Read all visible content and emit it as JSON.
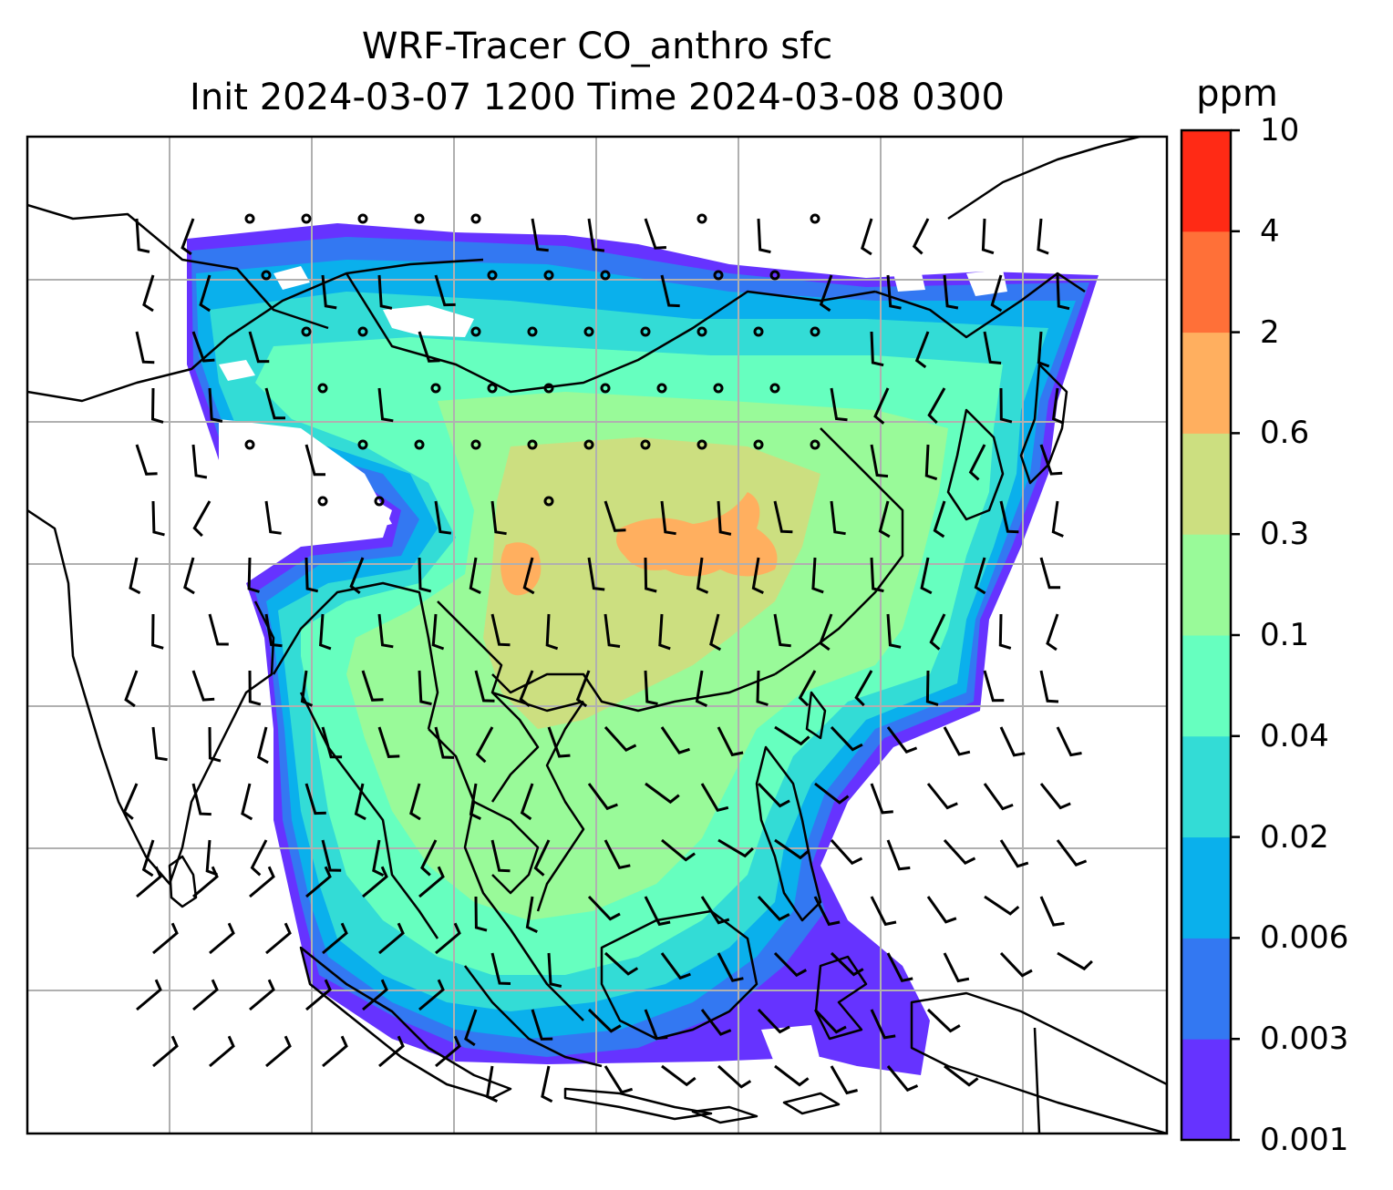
{
  "title": {
    "line1": "WRF-Tracer CO_anthro sfc",
    "line2": "Init 2024-03-07 1200 Time 2024-03-08 0300"
  },
  "colorbar": {
    "unit": "ppm",
    "levels": [
      "0.001",
      "0.003",
      "0.006",
      "0.02",
      "0.04",
      "0.1",
      "0.3",
      "0.6",
      "2",
      "4",
      "10"
    ],
    "colors": [
      "#6633ff",
      "#3378f2",
      "#0ab0ec",
      "#33dcd6",
      "#66ffbf",
      "#99fa99",
      "#ccdf80",
      "#ffaf5f",
      "#ff7038",
      "#ff2a15"
    ]
  },
  "map": {
    "gridlines": true,
    "features": [
      "coastlines",
      "country-borders",
      "wind-barbs",
      "calm-wind-circles",
      "co-anthro-filled-contours"
    ],
    "colors": {
      "grid": "#b0b0b0",
      "lines": "#000000",
      "ocean": "#ffffff"
    }
  }
}
